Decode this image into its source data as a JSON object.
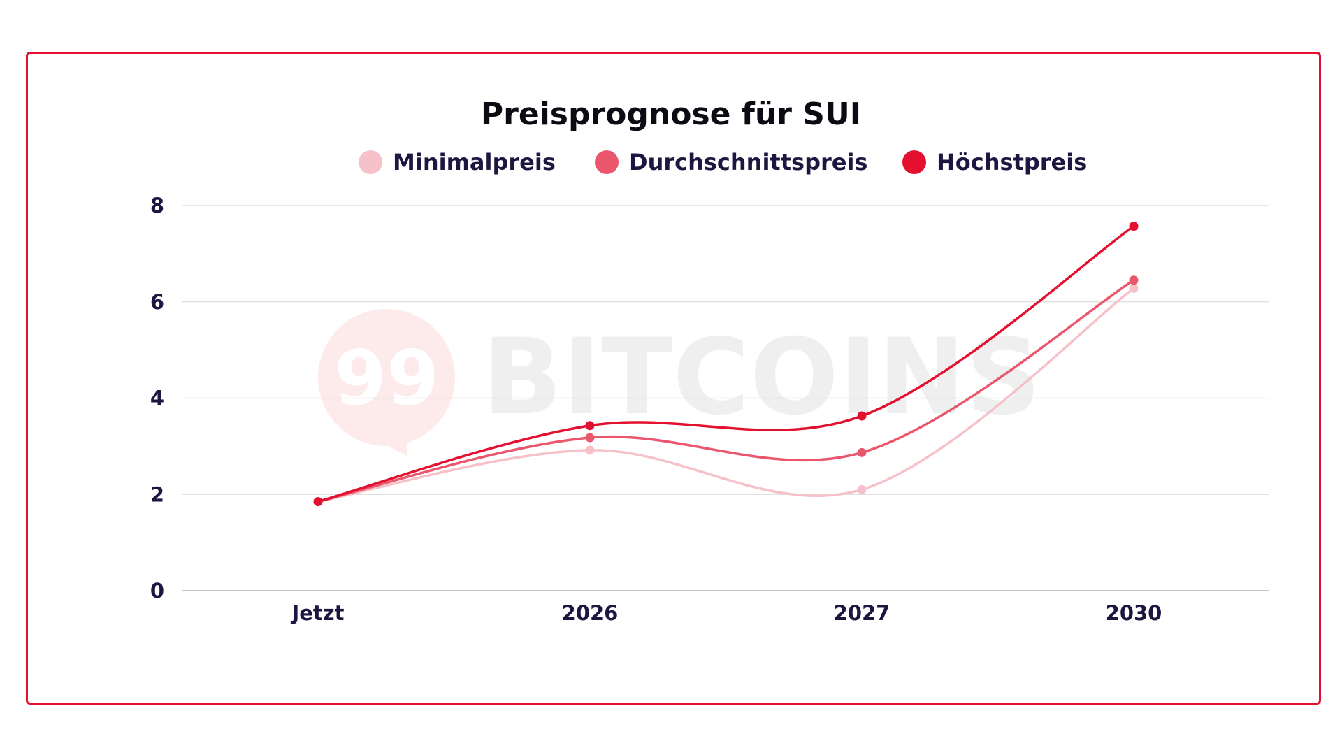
{
  "chart_data": {
    "type": "line",
    "title": "Preisprognose für SUI",
    "categories": [
      "Jetzt",
      "2026",
      "2027",
      "2030"
    ],
    "series": [
      {
        "name": "Minimalpreis",
        "color": "#f6c1c8",
        "values": [
          1.85,
          2.92,
          2.1,
          6.28
        ]
      },
      {
        "name": "Durchschnittspreis",
        "color": "#ea566c",
        "values": [
          1.85,
          3.18,
          2.87,
          6.45
        ]
      },
      {
        "name": "Höchstpreis",
        "color": "#e3112f",
        "values": [
          1.85,
          3.43,
          3.63,
          7.57
        ]
      }
    ],
    "y_ticks": [
      "0",
      "2",
      "4",
      "6",
      "8"
    ],
    "ylim": [
      0,
      8
    ],
    "grid": true,
    "legend_position": "top-center",
    "xlabel": "",
    "ylabel": ""
  },
  "watermark": {
    "logo_text": "99",
    "text": "BITCOINS"
  },
  "colors": {
    "frame": "#e3112f",
    "grid": "#dcdcdc",
    "axis": "#c4c4c4",
    "text": "#1b1740"
  }
}
